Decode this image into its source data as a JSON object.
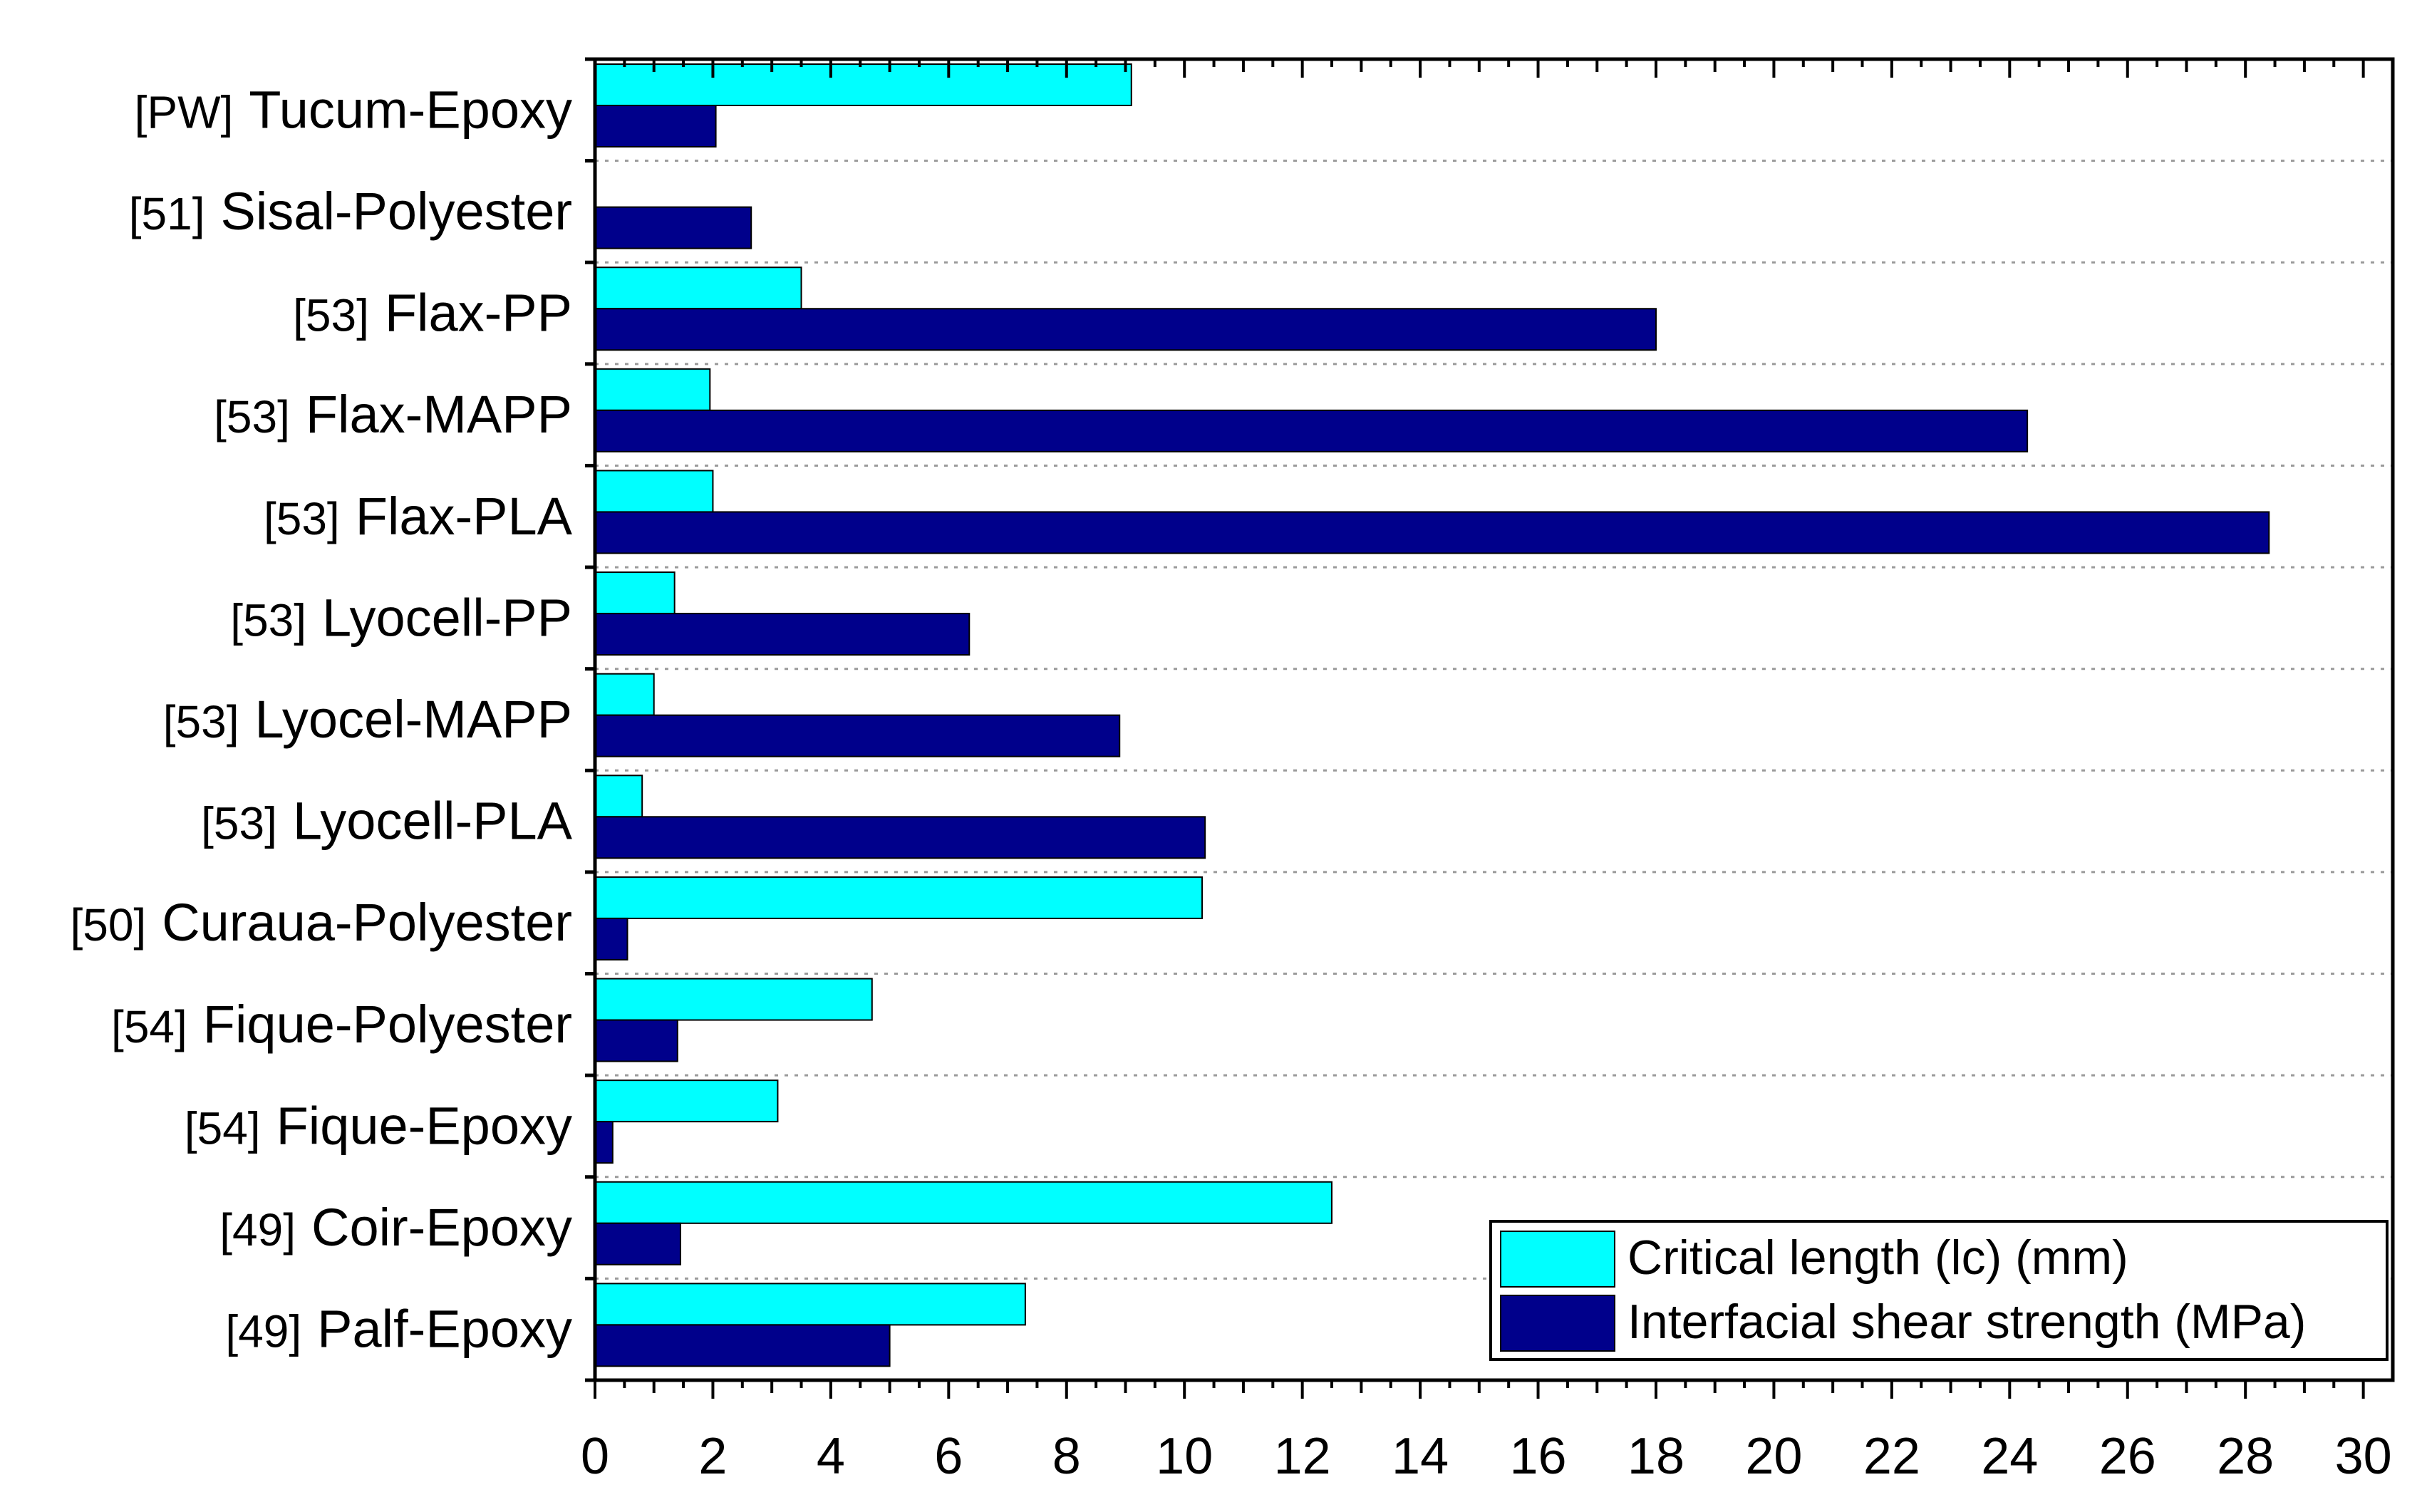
{
  "chart_data": {
    "type": "bar",
    "orientation": "horizontal",
    "title": "",
    "xlabel": "",
    "ylabel": "",
    "xlim": [
      0,
      30.5
    ],
    "x_ticks": [
      0,
      2,
      4,
      6,
      8,
      10,
      12,
      14,
      16,
      18,
      20,
      22,
      24,
      26,
      28,
      30
    ],
    "grid": "horizontal dotted",
    "legend_position": "bottom-right",
    "categories": [
      {
        "ref": "[PW]",
        "name": "Tucum-Epoxy"
      },
      {
        "ref": "[51]",
        "name": "Sisal-Polyester"
      },
      {
        "ref": "[53]",
        "name": "Flax-PP"
      },
      {
        "ref": "[53]",
        "name": "Flax-MAPP"
      },
      {
        "ref": "[53]",
        "name": "Flax-PLA"
      },
      {
        "ref": "[53]",
        "name": "Lyocell-PP"
      },
      {
        "ref": "[53]",
        "name": "Lyocel-MAPP"
      },
      {
        "ref": "[53]",
        "name": "Lyocell-PLA"
      },
      {
        "ref": "[50]",
        "name": "Curaua-Polyester"
      },
      {
        "ref": "[54]",
        "name": "Fique-Polyester"
      },
      {
        "ref": "[54]",
        "name": "Fique-Epoxy"
      },
      {
        "ref": "[49]",
        "name": "Coir-Epoxy"
      },
      {
        "ref": "[49]",
        "name": "Palf-Epoxy"
      }
    ],
    "series": [
      {
        "name": "Critical length (lc) (mm)",
        "color": "#00ffff",
        "values": [
          9.1,
          null,
          3.5,
          1.95,
          2.0,
          1.35,
          1.0,
          0.8,
          10.3,
          4.7,
          3.1,
          12.5,
          7.3
        ]
      },
      {
        "name": "Interfacial shear strength (MPa)",
        "color": "#00008b",
        "values": [
          2.05,
          2.65,
          18.0,
          24.3,
          28.4,
          6.35,
          8.9,
          10.35,
          0.55,
          1.4,
          0.3,
          1.45,
          5.0
        ]
      }
    ]
  }
}
